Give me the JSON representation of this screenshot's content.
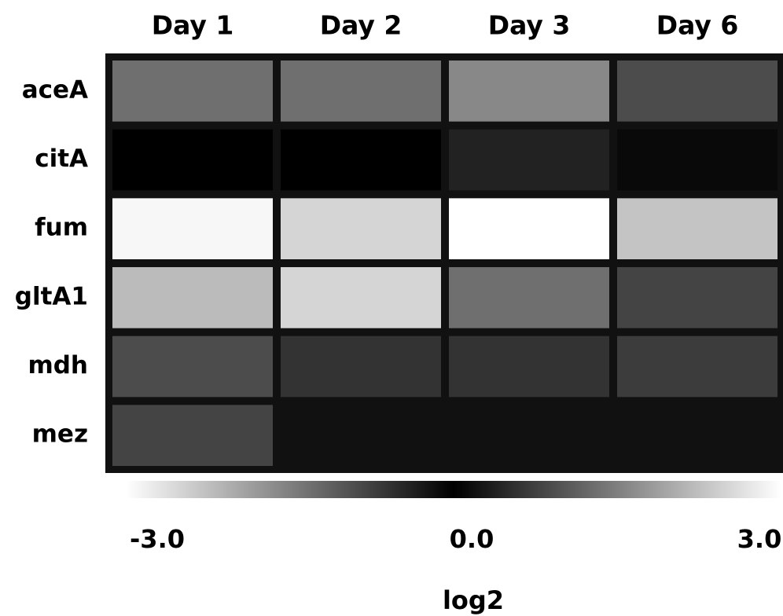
{
  "chart_data": {
    "type": "heatmap",
    "columns": [
      "Day 1",
      "Day 2",
      "Day 3",
      "Day 6"
    ],
    "rows": [
      "aceA",
      "citA",
      "fum",
      "gltA1",
      "mdh",
      "mez"
    ],
    "values": [
      [
        -1.3,
        -1.3,
        -1.6,
        -0.9
      ],
      [
        0.0,
        0.0,
        -0.4,
        -0.1
      ],
      [
        -2.9,
        -2.5,
        -3.0,
        -2.3
      ],
      [
        -2.2,
        -2.5,
        -1.3,
        -0.8
      ],
      [
        -0.9,
        -0.6,
        -0.6,
        -0.7
      ],
      [
        -0.8,
        -0.2,
        -0.2,
        -0.2
      ]
    ],
    "color_scale": {
      "min": -3.0,
      "mid": 0.0,
      "max": 3.0,
      "min_color": "#ffffff",
      "mid_color": "#000000",
      "max_color": "#ffffff",
      "tick_labels": [
        "-3.0",
        "0.0",
        "3.0"
      ],
      "label": "log2"
    }
  }
}
